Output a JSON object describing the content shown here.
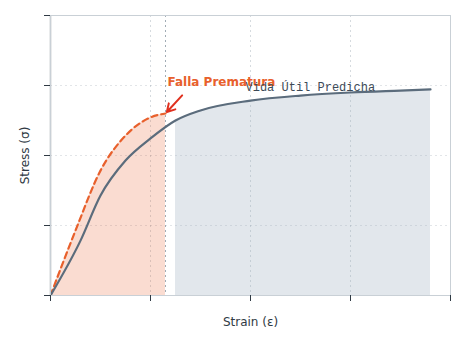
{
  "chart_data": {
    "type": "line",
    "x_label": "Strain (ε)",
    "y_label": "Stress (σ)",
    "xlim": [
      0,
      100
    ],
    "ylim": [
      0,
      100
    ],
    "xticks": [
      0,
      25,
      50,
      75,
      100
    ],
    "yticks": [
      0,
      25,
      50,
      75,
      100
    ],
    "grid": true,
    "tick_labels": false,
    "series": [
      {
        "name": "Falla Prematura",
        "color": "#e8602c",
        "line_style": "dashed",
        "x": [
          0,
          6.25,
          12.5,
          18.75,
          25,
          28.75
        ],
        "values": [
          0,
          23.2,
          44.6,
          57.1,
          63.6,
          65.0
        ]
      },
      {
        "name": "Vida Útil Predicha",
        "color": "#5b6c7c",
        "line_style": "solid",
        "x": [
          0,
          7.5,
          12.5,
          18.75,
          25,
          31.25,
          37.5,
          50,
          62.5,
          75,
          87.5,
          95
        ],
        "values": [
          0,
          19.6,
          35.7,
          48.2,
          56.1,
          62.5,
          66.1,
          69.6,
          71.4,
          72.5,
          73.2,
          73.6
        ]
      }
    ]
  }
}
